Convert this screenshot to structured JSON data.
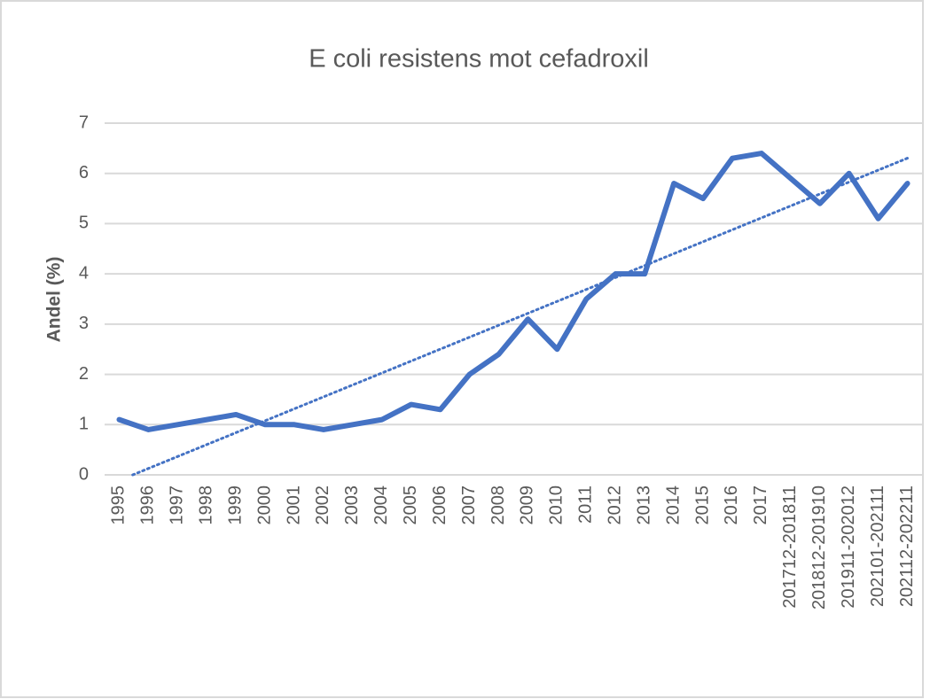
{
  "chart_data": {
    "type": "line",
    "title": "E coli resistens mot cefadroxil",
    "y_label": "Andel (%)",
    "categories": [
      "1995",
      "1996",
      "1997",
      "1998",
      "1999",
      "2000",
      "2001",
      "2002",
      "2003",
      "2004",
      "2005",
      "2006",
      "2007",
      "2008",
      "2009",
      "2010",
      "2011",
      "2012",
      "2013",
      "2014",
      "2015",
      "2016",
      "2017",
      "201712-201811",
      "201812-201910",
      "201911-202012",
      "202101-202111",
      "202112-202211"
    ],
    "series": [
      {
        "name": "Andel",
        "color": "#4472c4",
        "values": [
          1.1,
          0.9,
          1.0,
          1.1,
          1.2,
          1.0,
          1.0,
          0.9,
          1.0,
          1.1,
          1.4,
          1.3,
          2.0,
          2.4,
          3.1,
          2.5,
          3.5,
          4.0,
          4.0,
          5.8,
          5.5,
          6.3,
          6.4,
          5.9,
          5.4,
          6.0,
          5.1,
          5.8
        ]
      }
    ],
    "trendline": "linear",
    "ylim": [
      0,
      7
    ],
    "yticks": [
      0,
      1,
      2,
      3,
      4,
      5,
      6,
      7
    ],
    "grid": true
  }
}
